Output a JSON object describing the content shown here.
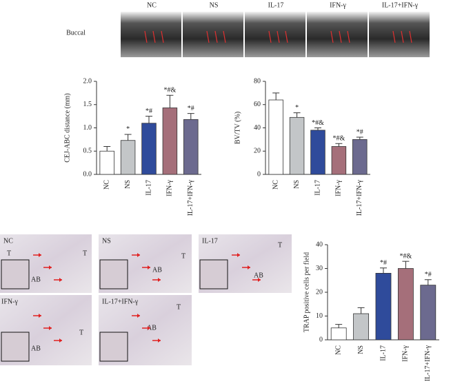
{
  "ct_panel": {
    "row_label": "Buccal",
    "labels": [
      "NC",
      "NS",
      "IL-17",
      "IFN-γ",
      "IL-17+IFN-γ"
    ]
  },
  "histology": [
    {
      "label": "NC",
      "tissue": [
        "T",
        "AB",
        "T"
      ]
    },
    {
      "label": "NS",
      "tissue": [
        "T",
        "AB"
      ]
    },
    {
      "label": "IL-17",
      "tissue": [
        "T",
        "AB"
      ]
    },
    {
      "label": "IFN-γ",
      "tissue": [
        "AB",
        "T"
      ]
    },
    {
      "label": "IL-17+IFN-γ",
      "tissue": [
        "T",
        "AB"
      ]
    }
  ],
  "chart_data": [
    {
      "type": "bar",
      "y_label": "CEJ-ABC distance (mm)",
      "categories": [
        "NC",
        "NS",
        "IL-17",
        "IFN-γ",
        "IL-17+IFN-γ"
      ],
      "values": [
        0.5,
        0.73,
        1.1,
        1.43,
        1.18
      ],
      "errors": [
        0.1,
        0.13,
        0.15,
        0.27,
        0.13
      ],
      "bar_labels": [
        null,
        "*",
        "*#",
        "*#&",
        "*#"
      ],
      "colors": [
        "#ffffff",
        "#c3c6c8",
        "#2f4b9b",
        "#a56f7a",
        "#6c6a8f"
      ],
      "ylim": [
        0,
        2
      ],
      "yticks": [
        {
          "value": 0,
          "label": "0.0"
        },
        0.5,
        {
          "value": 1,
          "label": "1.0"
        },
        1.5,
        {
          "value": 2,
          "label": "2.0"
        }
      ]
    },
    {
      "type": "bar",
      "y_label": "BV/TV (%)",
      "categories": [
        "NC",
        "NS",
        "IL-17",
        "IFN-γ",
        "IL-17+IFN-γ"
      ],
      "values": [
        64,
        49,
        38,
        24,
        30
      ],
      "errors": [
        6,
        4,
        2,
        2.5,
        2
      ],
      "bar_labels": [
        null,
        "*",
        "*#&",
        "*#&",
        "*#"
      ],
      "colors": [
        "#ffffff",
        "#c3c6c8",
        "#2f4b9b",
        "#a56f7a",
        "#6c6a8f"
      ],
      "ylim": [
        0,
        80
      ],
      "yticks": [
        0,
        20,
        40,
        60,
        80
      ]
    },
    {
      "type": "bar",
      "y_label": "TRAP positive cells per field",
      "categories": [
        "NC",
        "NS",
        "IL-17",
        "IFN-γ",
        "IL-17+IFN-γ"
      ],
      "values": [
        5,
        11,
        28,
        30,
        23
      ],
      "errors": [
        1.5,
        2.5,
        2.2,
        3,
        2.3
      ],
      "bar_labels": [
        null,
        null,
        "*#",
        "*#&",
        "*#"
      ],
      "colors": [
        "#ffffff",
        "#c3c6c8",
        "#2f4b9b",
        "#a56f7a",
        "#6c6a8f"
      ],
      "ylim": [
        0,
        40
      ],
      "yticks": [
        0,
        10,
        20,
        30,
        40
      ]
    }
  ]
}
